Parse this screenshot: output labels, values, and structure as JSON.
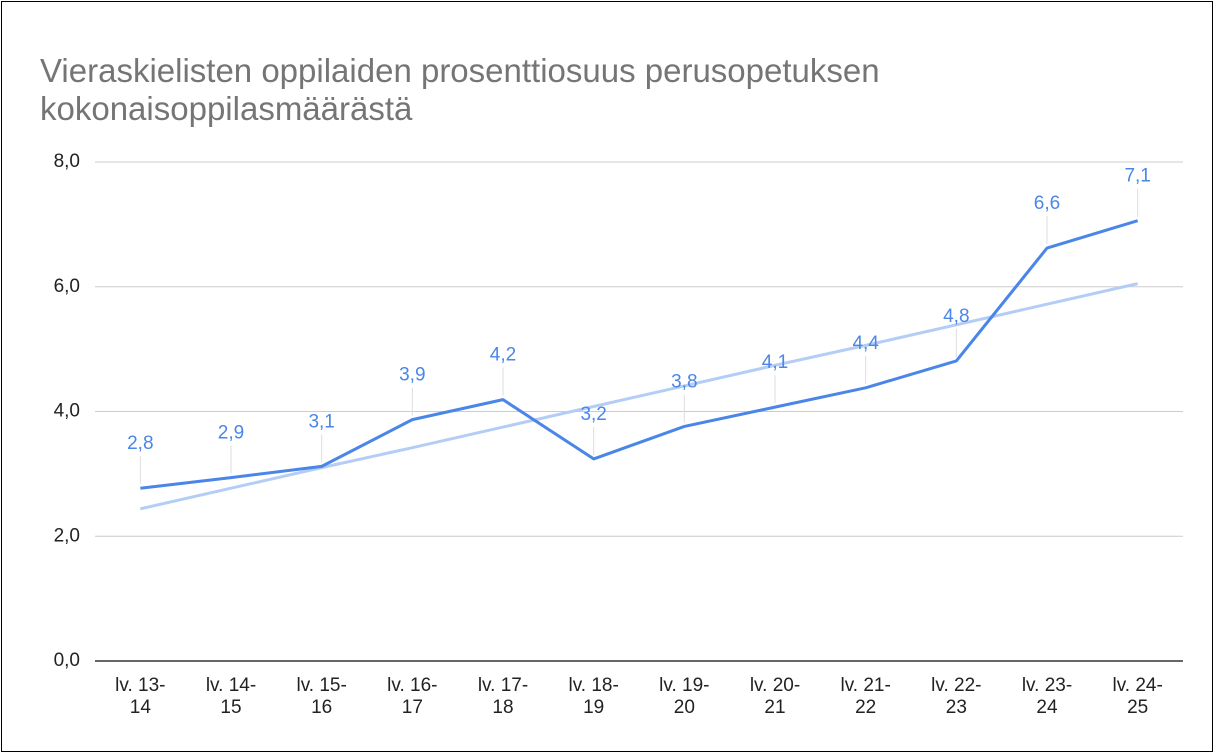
{
  "chart_data": {
    "type": "line",
    "title": "Vieraskielisten oppilaiden prosenttiosuus perusopetuksen kokonaisoppilasmäärästä",
    "categories": [
      "lv. 13-14",
      "lv. 14-15",
      "lv. 15-16",
      "lv. 16-17",
      "lv. 17-18",
      "lv. 18-19",
      "lv. 19-20",
      "lv. 20-21",
      "lv. 21-22",
      "lv. 22-23",
      "lv. 23-24",
      "lv. 24-25"
    ],
    "series": [
      {
        "color": "#4a86e8",
        "values": [
          2.77,
          2.94,
          3.12,
          3.87,
          4.19,
          3.24,
          3.76,
          4.07,
          4.38,
          4.81,
          6.62,
          7.06
        ],
        "value_labels": [
          "2,8",
          "2,9",
          "3,1",
          "3,9",
          "4,2",
          "3,2",
          "3,8",
          "4,1",
          "4,4",
          "4,8",
          "6,6",
          "7,1"
        ]
      }
    ],
    "trendline": {
      "color": "#b3cdf7",
      "values": [
        2.44,
        2.77,
        3.1,
        3.42,
        3.75,
        4.08,
        4.41,
        4.74,
        5.06,
        5.39,
        5.72,
        6.05
      ]
    },
    "ylim": [
      0,
      8
    ],
    "yticks": [
      {
        "value": 0,
        "label": "0,0"
      },
      {
        "value": 2,
        "label": "2,0"
      },
      {
        "value": 4,
        "label": "4,0"
      },
      {
        "value": 6,
        "label": "6,0"
      },
      {
        "value": 8,
        "label": "8,0"
      }
    ],
    "grid": true
  }
}
